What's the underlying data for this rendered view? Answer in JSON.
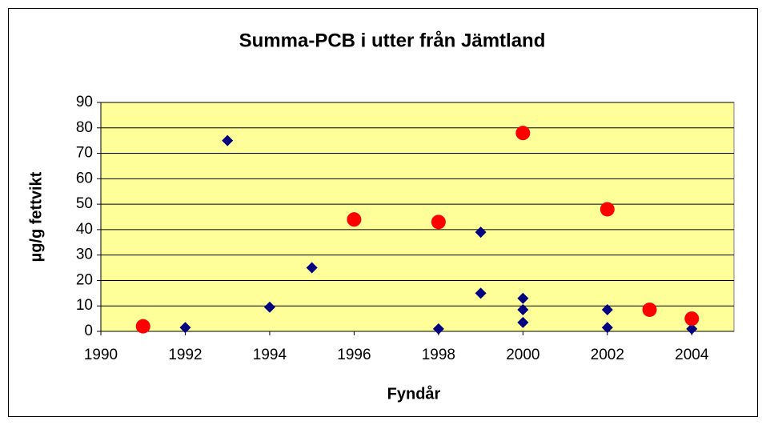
{
  "chart_data": {
    "type": "scatter",
    "title": "Summa-PCB i utter från Jämtland",
    "x_label": "Fyndår",
    "y_label": "µg/g fettvikt",
    "xlim": [
      1990,
      2005
    ],
    "xticks": [
      1990,
      1992,
      1994,
      1996,
      1998,
      2000,
      2002,
      2004
    ],
    "ylim": [
      0,
      90
    ],
    "yticks": [
      0,
      10,
      20,
      30,
      40,
      50,
      60,
      70,
      80,
      90
    ],
    "grid": true,
    "plot_background": "#ffff99",
    "series": [
      {
        "color": "#000080",
        "marker": "diamond",
        "x": [
          1992,
          1993,
          1994,
          1995,
          1998,
          1999,
          1999,
          2000,
          2000,
          2000,
          2002,
          2002,
          2004
        ],
        "values": [
          1.5,
          75,
          9.5,
          25,
          1,
          39,
          15,
          13,
          8.5,
          3.5,
          8.5,
          1.5,
          1
        ]
      },
      {
        "color": "#ff0000",
        "marker": "circle",
        "x": [
          1991,
          1996,
          1998,
          2000,
          2002,
          2003,
          2004
        ],
        "values": [
          2,
          44,
          43,
          78,
          48,
          8.5,
          5
        ]
      }
    ]
  }
}
